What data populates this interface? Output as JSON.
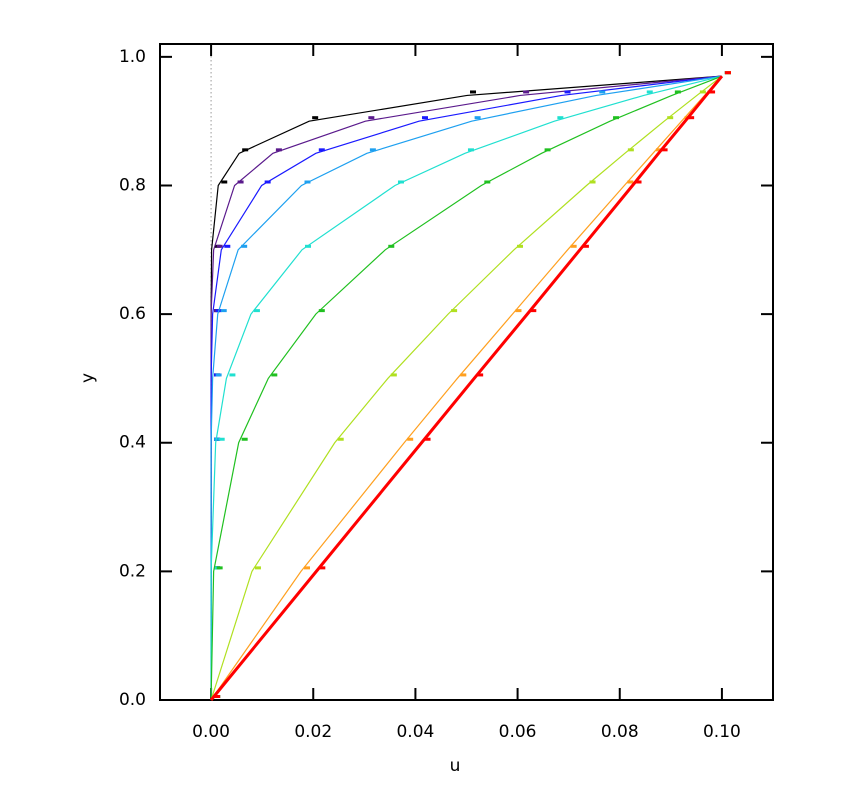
{
  "chart_data": {
    "type": "line",
    "x_label": "u",
    "y_label": "y",
    "xlim": [
      -0.01,
      0.11
    ],
    "ylim": [
      0,
      1.02
    ],
    "xticks": [
      {
        "value": 0,
        "label": "0.00"
      },
      {
        "value": 0.02,
        "label": "0.02"
      },
      {
        "value": 0.04,
        "label": "0.04"
      },
      {
        "value": 0.06,
        "label": "0.06"
      },
      {
        "value": 0.08,
        "label": "0.08"
      },
      {
        "value": 0.1,
        "label": "0.10"
      }
    ],
    "yticks": [
      {
        "value": 0,
        "label": "0.0"
      },
      {
        "value": 0.2,
        "label": "0.2"
      },
      {
        "value": 0.4,
        "label": "0.4"
      },
      {
        "value": 0.6,
        "label": "0.6"
      },
      {
        "value": 0.8,
        "label": "0.8"
      },
      {
        "value": 1,
        "label": "1.0"
      }
    ],
    "reference_line_x": 0,
    "series": [
      {
        "color": "#000000",
        "x": [
          0,
          0,
          0,
          0,
          0,
          0.0001,
          0.0014,
          0.0055,
          0.0192,
          0.0501,
          0.1
        ],
        "values": [
          0,
          0.2,
          0.4,
          0.5,
          0.6,
          0.7,
          0.8,
          0.85,
          0.9,
          0.94,
          0.97
        ]
      },
      {
        "color": "#5a1a8c",
        "x": [
          0,
          0,
          0,
          0,
          0,
          0.0005,
          0.0046,
          0.0121,
          0.0302,
          0.0605,
          0.1
        ],
        "values": [
          0,
          0.2,
          0.4,
          0.5,
          0.6,
          0.7,
          0.8,
          0.85,
          0.9,
          0.94,
          0.97
        ]
      },
      {
        "color": "#1a1aff",
        "x": [
          0,
          0,
          0,
          0,
          0.0003,
          0.002,
          0.0099,
          0.0205,
          0.0407,
          0.0686,
          0.1
        ],
        "values": [
          0,
          0.2,
          0.4,
          0.5,
          0.6,
          0.7,
          0.8,
          0.85,
          0.9,
          0.94,
          0.97
        ]
      },
      {
        "color": "#1ea0f0",
        "x": [
          0,
          0,
          0,
          0.0003,
          0.0013,
          0.0053,
          0.0177,
          0.0305,
          0.051,
          0.0754,
          0.1
        ],
        "values": [
          0,
          0.2,
          0.4,
          0.5,
          0.6,
          0.7,
          0.8,
          0.85,
          0.9,
          0.94,
          0.97
        ]
      },
      {
        "color": "#20e0d0",
        "x": [
          0,
          0,
          0.0009,
          0.003,
          0.0078,
          0.0178,
          0.036,
          0.0497,
          0.0672,
          0.0847,
          0.1
        ],
        "values": [
          0,
          0.2,
          0.4,
          0.5,
          0.6,
          0.7,
          0.8,
          0.85,
          0.9,
          0.94,
          0.97
        ]
      },
      {
        "color": "#20c020",
        "x": [
          0,
          0.0005,
          0.0054,
          0.0112,
          0.0205,
          0.0341,
          0.0529,
          0.0647,
          0.0781,
          0.0902,
          0.1
        ],
        "values": [
          0,
          0.2,
          0.4,
          0.5,
          0.6,
          0.7,
          0.8,
          0.85,
          0.9,
          0.94,
          0.97
        ]
      },
      {
        "color": "#b0e020",
        "x": [
          0,
          0.008,
          0.0242,
          0.0346,
          0.0464,
          0.0593,
          0.0735,
          0.081,
          0.0887,
          0.0951,
          0.1
        ],
        "values": [
          0,
          0.2,
          0.4,
          0.5,
          0.6,
          0.7,
          0.8,
          0.85,
          0.9,
          0.94,
          0.97
        ]
      },
      {
        "color": "#ffa020",
        "x": [
          0,
          0.0176,
          0.0378,
          0.0482,
          0.059,
          0.0698,
          0.0809,
          0.0865,
          0.0921,
          0.0966,
          0.1
        ],
        "values": [
          0,
          0.2,
          0.4,
          0.5,
          0.6,
          0.7,
          0.8,
          0.85,
          0.9,
          0.94,
          0.97
        ]
      },
      {
        "color": "#ff0000",
        "x": [
          0,
          0.0206,
          0.0412,
          0.0515,
          0.0619,
          0.0722,
          0.0825,
          0.0876,
          0.0928,
          0.0969,
          0.1
        ],
        "values": [
          0,
          0.2,
          0.4,
          0.5,
          0.6,
          0.7,
          0.8,
          0.85,
          0.9,
          0.94,
          0.97
        ]
      }
    ]
  }
}
